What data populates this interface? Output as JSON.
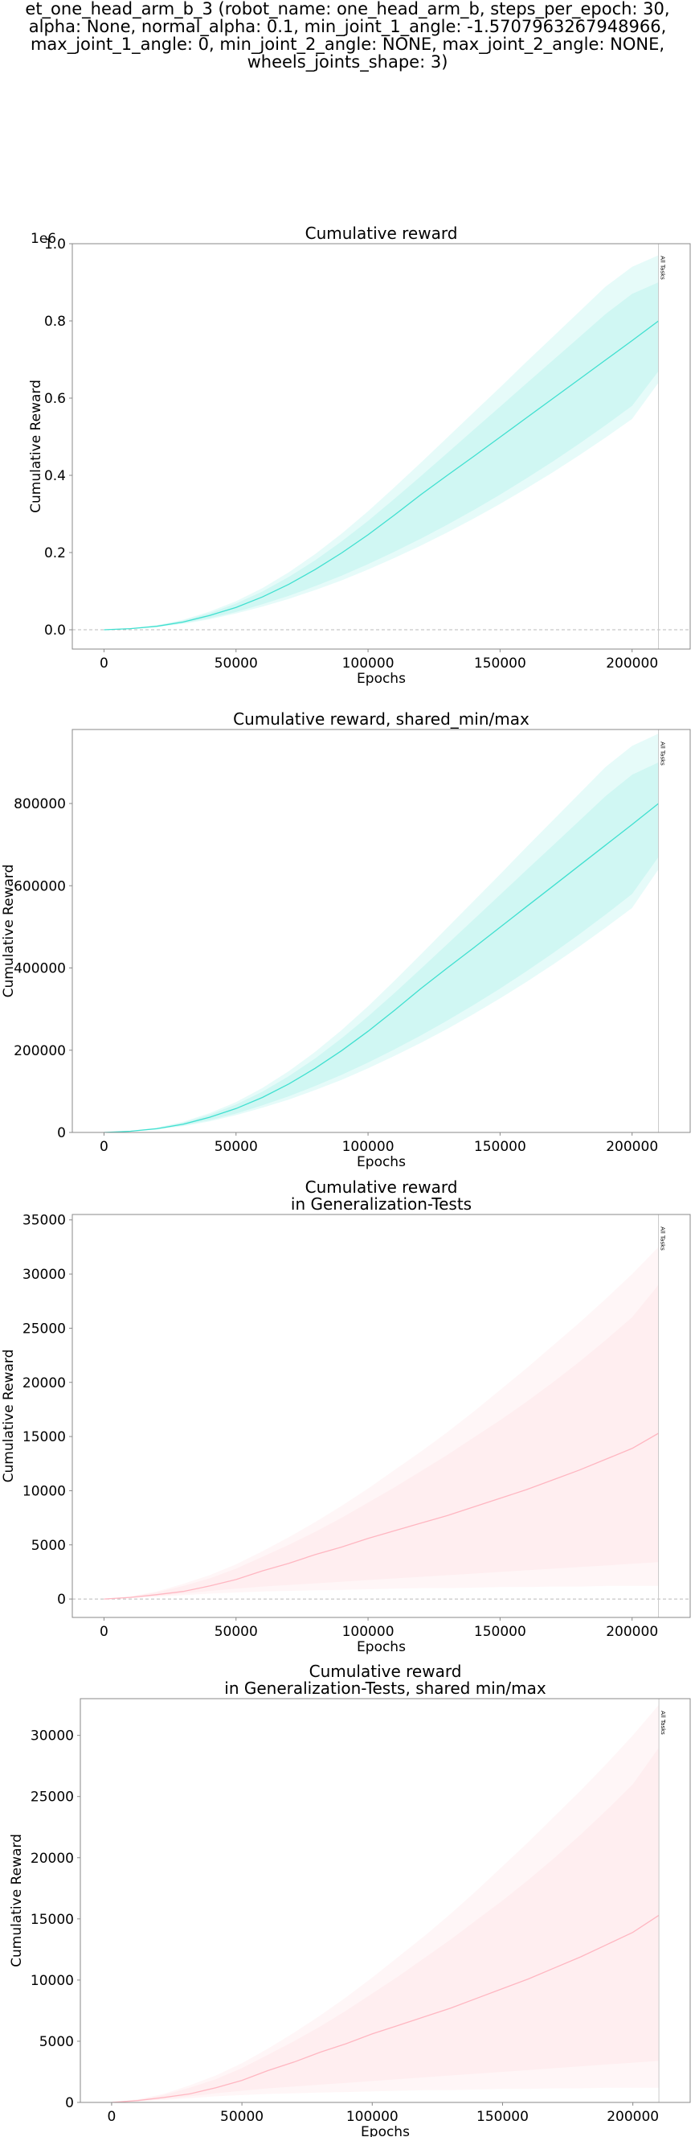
{
  "figure": {
    "suptitle_lines": [
      "et_one_head_arm_b_3 (robot_name: one_head_arm_b, steps_per_epoch: 30,",
      "alpha: None, normal_alpha: 0.1, min_joint_1_angle: -1.5707963267948966,",
      "max_joint_1_angle: 0, min_joint_2_angle: NONE, max_joint_2_angle: NONE,",
      "wheels_joints_shape: 3)"
    ]
  },
  "chart_data": [
    {
      "type": "line",
      "title_lines": [
        "Cumulative reward"
      ],
      "xlabel": "Epochs",
      "ylabel": "Cumulative Reward",
      "xlim": [
        -12000,
        222000
      ],
      "ylim": [
        -50000,
        1000000
      ],
      "xticks": [
        0,
        50000,
        100000,
        150000,
        200000
      ],
      "xtick_labels": [
        "0",
        "50000",
        "100000",
        "150000",
        "200000"
      ],
      "yticks": [
        0,
        200000,
        400000,
        600000,
        800000,
        1000000
      ],
      "ytick_labels": [
        "0.0",
        "0.2",
        "0.4",
        "0.6",
        "0.8",
        "1.0"
      ],
      "offset_text": "1e6",
      "zero_line": true,
      "vline": {
        "x": 210000,
        "label": "All Tasks"
      },
      "color": "#40E0D0",
      "x": [
        0,
        10000,
        20000,
        30000,
        40000,
        50000,
        60000,
        70000,
        80000,
        90000,
        100000,
        110000,
        120000,
        130000,
        140000,
        150000,
        160000,
        170000,
        180000,
        190000,
        200000,
        210000
      ],
      "series": [
        {
          "role": "mean",
          "values": [
            0,
            3000,
            9000,
            20000,
            37000,
            58000,
            85000,
            118000,
            156000,
            199000,
            246000,
            297000,
            350000,
            400000,
            449000,
            499000,
            549000,
            599000,
            649000,
            699000,
            749000,
            800000
          ]
        },
        {
          "role": "band_outer_low",
          "values": [
            0,
            2000,
            7000,
            15000,
            27000,
            42000,
            60000,
            80000,
            103000,
            128000,
            156000,
            186000,
            218000,
            252000,
            288000,
            326000,
            366000,
            408000,
            452000,
            498000,
            546000,
            640000
          ]
        },
        {
          "role": "band_outer_high",
          "values": [
            0,
            4000,
            12000,
            26000,
            47000,
            74000,
            108000,
            149000,
            196000,
            249000,
            307000,
            369000,
            433000,
            498000,
            563000,
            628000,
            694000,
            759000,
            824000,
            889000,
            940000,
            970000
          ]
        },
        {
          "role": "band_inner_low",
          "values": [
            0,
            2500,
            8000,
            17000,
            30000,
            46000,
            66000,
            88000,
            113000,
            140000,
            170000,
            202000,
            236000,
            272000,
            310000,
            350000,
            392000,
            436000,
            482000,
            530000,
            580000,
            670000
          ]
        },
        {
          "role": "band_inner_high",
          "values": [
            0,
            3500,
            11000,
            24000,
            43000,
            68000,
            99000,
            137000,
            180000,
            229000,
            282000,
            339000,
            398000,
            458000,
            518000,
            578000,
            638000,
            698000,
            758000,
            818000,
            870000,
            900000
          ]
        }
      ]
    },
    {
      "type": "line",
      "title_lines": [
        "Cumulative reward, shared_min/max"
      ],
      "xlabel": "Epochs",
      "ylabel": "Cumulative Reward",
      "xlim": [
        -12000,
        222000
      ],
      "ylim": [
        0,
        980000
      ],
      "xticks": [
        0,
        50000,
        100000,
        150000,
        200000
      ],
      "xtick_labels": [
        "0",
        "50000",
        "100000",
        "150000",
        "200000"
      ],
      "yticks": [
        0,
        200000,
        400000,
        600000,
        800000
      ],
      "ytick_labels": [
        "0",
        "200000",
        "400000",
        "600000",
        "800000"
      ],
      "zero_line": false,
      "vline": {
        "x": 210000,
        "label": "All Tasks"
      },
      "color": "#40E0D0",
      "x": [
        0,
        10000,
        20000,
        30000,
        40000,
        50000,
        60000,
        70000,
        80000,
        90000,
        100000,
        110000,
        120000,
        130000,
        140000,
        150000,
        160000,
        170000,
        180000,
        190000,
        200000,
        210000
      ],
      "series": [
        {
          "role": "mean",
          "values": [
            0,
            3000,
            9000,
            20000,
            37000,
            58000,
            85000,
            118000,
            156000,
            199000,
            246000,
            297000,
            350000,
            400000,
            449000,
            499000,
            549000,
            599000,
            649000,
            699000,
            749000,
            800000
          ]
        },
        {
          "role": "band_outer_low",
          "values": [
            0,
            2000,
            7000,
            15000,
            27000,
            42000,
            60000,
            80000,
            103000,
            128000,
            156000,
            186000,
            218000,
            252000,
            288000,
            326000,
            366000,
            408000,
            452000,
            498000,
            546000,
            640000
          ]
        },
        {
          "role": "band_outer_high",
          "values": [
            0,
            4000,
            12000,
            26000,
            47000,
            74000,
            108000,
            149000,
            196000,
            249000,
            307000,
            369000,
            433000,
            498000,
            563000,
            628000,
            694000,
            759000,
            824000,
            889000,
            940000,
            970000
          ]
        },
        {
          "role": "band_inner_low",
          "values": [
            0,
            2500,
            8000,
            17000,
            30000,
            46000,
            66000,
            88000,
            113000,
            140000,
            170000,
            202000,
            236000,
            272000,
            310000,
            350000,
            392000,
            436000,
            482000,
            530000,
            580000,
            670000
          ]
        },
        {
          "role": "band_inner_high",
          "values": [
            0,
            3500,
            11000,
            24000,
            43000,
            68000,
            99000,
            137000,
            180000,
            229000,
            282000,
            339000,
            398000,
            458000,
            518000,
            578000,
            638000,
            698000,
            758000,
            818000,
            870000,
            900000
          ]
        }
      ]
    },
    {
      "type": "line",
      "title_lines": [
        "Cumulative reward",
        "in Generalization-Tests"
      ],
      "xlabel": "Epochs",
      "ylabel": "Cumulative Reward",
      "xlim": [
        -12000,
        222000
      ],
      "ylim": [
        -1700,
        35500
      ],
      "xticks": [
        0,
        50000,
        100000,
        150000,
        200000
      ],
      "xtick_labels": [
        "0",
        "50000",
        "100000",
        "150000",
        "200000"
      ],
      "yticks": [
        0,
        5000,
        10000,
        15000,
        20000,
        25000,
        30000,
        35000
      ],
      "ytick_labels": [
        "0",
        "5000",
        "10000",
        "15000",
        "20000",
        "25000",
        "30000",
        "35000"
      ],
      "zero_line": true,
      "vline": {
        "x": 210000,
        "label": "All Tasks"
      },
      "color": "#FFB6C1",
      "x": [
        0,
        10000,
        20000,
        30000,
        40000,
        50000,
        60000,
        70000,
        80000,
        90000,
        100000,
        110000,
        120000,
        130000,
        140000,
        150000,
        160000,
        170000,
        180000,
        190000,
        200000,
        210000
      ],
      "series": [
        {
          "role": "mean",
          "values": [
            0,
            150,
            400,
            700,
            1200,
            1800,
            2600,
            3300,
            4100,
            4800,
            5600,
            6300,
            7000,
            7700,
            8500,
            9300,
            10100,
            11000,
            11900,
            12900,
            13900,
            15300
          ]
        },
        {
          "role": "band_outer_low",
          "values": [
            0,
            80,
            200,
            350,
            500,
            600,
            700,
            750,
            800,
            850,
            900,
            950,
            1000,
            1000,
            1050,
            1100,
            1100,
            1150,
            1150,
            1200,
            1200,
            1200
          ]
        },
        {
          "role": "band_outer_high",
          "values": [
            0,
            250,
            700,
            1400,
            2200,
            3200,
            4400,
            5700,
            7100,
            8600,
            10200,
            11900,
            13600,
            15400,
            17300,
            19300,
            21300,
            23400,
            25500,
            27700,
            30000,
            32500
          ]
        },
        {
          "role": "band_inner_low",
          "values": [
            0,
            100,
            280,
            500,
            750,
            950,
            1150,
            1300,
            1450,
            1600,
            1750,
            1900,
            2050,
            2200,
            2350,
            2500,
            2650,
            2800,
            2950,
            3100,
            3250,
            3400
          ]
        },
        {
          "role": "band_inner_high",
          "values": [
            0,
            220,
            600,
            1200,
            1900,
            2800,
            3900,
            5000,
            6200,
            7500,
            8900,
            10300,
            11800,
            13300,
            14900,
            16500,
            18200,
            20000,
            21900,
            23900,
            26000,
            29000
          ]
        }
      ]
    },
    {
      "type": "line",
      "title_lines": [
        "Cumulative reward",
        "in Generalization-Tests, shared min/max"
      ],
      "xlabel": "Epochs",
      "ylabel": "Cumulative Reward",
      "xlim": [
        -12000,
        222000
      ],
      "ylim": [
        0,
        33000
      ],
      "xticks": [
        0,
        50000,
        100000,
        150000,
        200000
      ],
      "xtick_labels": [
        "0",
        "50000",
        "100000",
        "150000",
        "200000"
      ],
      "yticks": [
        0,
        5000,
        10000,
        15000,
        20000,
        25000,
        30000
      ],
      "ytick_labels": [
        "0",
        "5000",
        "10000",
        "15000",
        "20000",
        "25000",
        "30000"
      ],
      "zero_line": false,
      "vline": {
        "x": 210000,
        "label": "All Tasks"
      },
      "color": "#FFB6C1",
      "x": [
        0,
        10000,
        20000,
        30000,
        40000,
        50000,
        60000,
        70000,
        80000,
        90000,
        100000,
        110000,
        120000,
        130000,
        140000,
        150000,
        160000,
        170000,
        180000,
        190000,
        200000,
        210000
      ],
      "series": [
        {
          "role": "mean",
          "values": [
            0,
            150,
            400,
            700,
            1200,
            1800,
            2600,
            3300,
            4100,
            4800,
            5600,
            6300,
            7000,
            7700,
            8500,
            9300,
            10100,
            11000,
            11900,
            12900,
            13900,
            15300
          ]
        },
        {
          "role": "band_outer_low",
          "values": [
            0,
            80,
            200,
            350,
            500,
            600,
            700,
            750,
            800,
            850,
            900,
            950,
            1000,
            1000,
            1050,
            1100,
            1100,
            1150,
            1150,
            1200,
            1200,
            1200
          ]
        },
        {
          "role": "band_outer_high",
          "values": [
            0,
            250,
            700,
            1400,
            2200,
            3200,
            4400,
            5700,
            7100,
            8600,
            10200,
            11900,
            13600,
            15400,
            17300,
            19300,
            21300,
            23400,
            25500,
            27700,
            30000,
            32500
          ]
        },
        {
          "role": "band_inner_low",
          "values": [
            0,
            100,
            280,
            500,
            750,
            950,
            1150,
            1300,
            1450,
            1600,
            1750,
            1900,
            2050,
            2200,
            2350,
            2500,
            2650,
            2800,
            2950,
            3100,
            3250,
            3400
          ]
        },
        {
          "role": "band_inner_high",
          "values": [
            0,
            220,
            600,
            1200,
            1900,
            2800,
            3900,
            5000,
            6200,
            7500,
            8900,
            10300,
            11800,
            13300,
            14900,
            16500,
            18200,
            20000,
            21900,
            23900,
            26000,
            29000
          ]
        }
      ]
    }
  ]
}
